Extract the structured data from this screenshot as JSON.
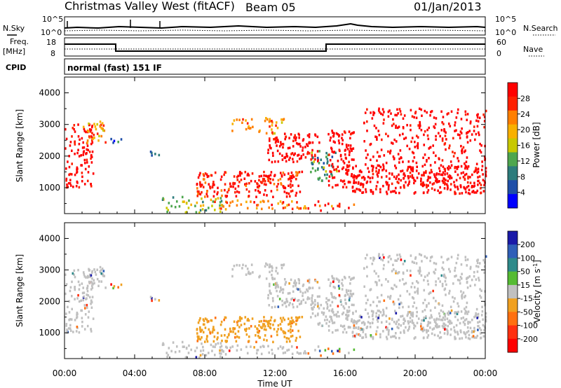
{
  "header": {
    "title": "Christmas Valley West (fitACF)",
    "beam": "Beam 05",
    "date": "01/Jan/2013"
  },
  "top_panels": {
    "nsky_label": "N.Sky",
    "nsearch_label": "N.Search",
    "noise_ticks": [
      "10^5",
      "10^0"
    ],
    "freq_label_1": "Freq.",
    "freq_label_2": "[MHz]",
    "freq_ticks": [
      "18",
      "8"
    ],
    "nave_ticks": [
      "60",
      "0"
    ],
    "nave_label": "Nave",
    "cpid_label": "CPID",
    "cpid_value": "normal (fast) 151 IF"
  },
  "chart_data": [
    {
      "type": "heatmap",
      "title": "Power",
      "ylabel": "Slant Range [km]",
      "ylim": [
        180,
        4500
      ],
      "y_ticks": [
        1000,
        2000,
        3000,
        4000
      ],
      "colorbar_label": "Power [dB]",
      "colorbar_ticks": [
        "28",
        "24",
        "20",
        "16",
        "12",
        "8",
        "4"
      ],
      "colorbar_colors": [
        "#ff0000",
        "#ff2000",
        "#ff7f00",
        "#f8b000",
        "#c8c800",
        "#4ea64e",
        "#2d7c7c",
        "#1f4fa8",
        "#0000ff"
      ]
    },
    {
      "type": "heatmap",
      "title": "Velocity",
      "ylabel": "Slant Range [km]",
      "ylim": [
        180,
        4500
      ],
      "y_ticks": [
        1000,
        2000,
        3000,
        4000
      ],
      "colorbar_label": "Velocity [m s^-1]",
      "colorbar_ticks": [
        "200",
        "100",
        "50",
        "15",
        "-15",
        "-50",
        "-100",
        "-200"
      ],
      "colorbar_colors": [
        "#1a1aa8",
        "#2f5fb8",
        "#2e8a8a",
        "#55bb33",
        "#c0c0c0",
        "#f0a020",
        "#ff7010",
        "#ff3010",
        "#ff0000"
      ],
      "ground_scatter_color": "#c0c0c0"
    }
  ],
  "x_axis": {
    "ticks": [
      "00:00",
      "04:00",
      "08:00",
      "12:00",
      "16:00",
      "20:00",
      "00:00"
    ],
    "label": "Time UT"
  }
}
